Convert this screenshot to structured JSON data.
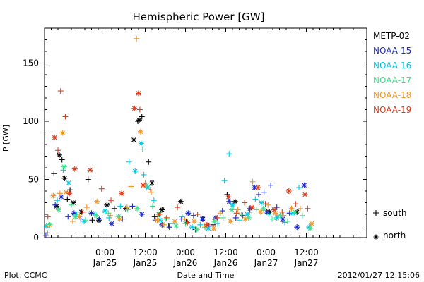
{
  "chart_data": {
    "type": "scatter",
    "title": "Hemispheric Power [GW]",
    "xlabel": "Date and Time",
    "ylabel": "P [GW]",
    "ylim": [
      0,
      180
    ],
    "xlim": [
      -9,
      39
    ],
    "yticks": [
      0,
      50,
      100,
      150
    ],
    "xticks": [
      {
        "x": 0,
        "time": "0:00",
        "date": "Jan25"
      },
      {
        "x": 6,
        "time": "12:00",
        "date": "Jan25"
      },
      {
        "x": 12,
        "time": "0:00",
        "date": "Jan26"
      },
      {
        "x": 18,
        "time": "12:00",
        "date": "Jan26"
      },
      {
        "x": 24,
        "time": "0:00",
        "date": "Jan27"
      },
      {
        "x": 30,
        "time": "12:00",
        "date": "Jan27"
      }
    ],
    "legend_position": "right",
    "marker_legend": [
      {
        "marker": "+",
        "label": "south"
      },
      {
        "marker": "*",
        "label": "north"
      }
    ],
    "footer_left": "Plot: CCMC",
    "footer_right": "2012/01/27 12:15:06",
    "series": [
      {
        "name": "METP-02",
        "color": "#000000",
        "points": [
          [
            -8.6,
            4,
            "+"
          ],
          [
            -7.6,
            55,
            "+"
          ],
          [
            -7.2,
            27,
            "*"
          ],
          [
            -6.8,
            71,
            "*"
          ],
          [
            -6.4,
            67,
            "+"
          ],
          [
            -6.0,
            51,
            "*"
          ],
          [
            -5.6,
            33,
            "+"
          ],
          [
            -5.2,
            41,
            "+"
          ],
          [
            -4.7,
            30,
            "*"
          ],
          [
            -3.5,
            22,
            "*"
          ],
          [
            -2.5,
            50,
            "+"
          ],
          [
            -1.9,
            15,
            "+"
          ],
          [
            -0.9,
            15,
            "*"
          ],
          [
            0.3,
            28,
            "*"
          ],
          [
            1.4,
            25,
            "+"
          ],
          [
            3.1,
            25,
            "*"
          ],
          [
            4.3,
            84,
            "*"
          ],
          [
            4.9,
            100,
            "+"
          ],
          [
            5.1,
            101,
            "*"
          ],
          [
            5.5,
            104,
            "+"
          ],
          [
            6.5,
            65,
            "+"
          ],
          [
            7.0,
            47,
            "*"
          ],
          [
            7.4,
            18,
            "+"
          ],
          [
            8.5,
            24,
            "*"
          ],
          [
            9.5,
            10,
            "+"
          ],
          [
            11.3,
            31,
            "*"
          ],
          [
            12.1,
            14,
            "+"
          ],
          [
            13.5,
            7,
            "+"
          ],
          [
            14.6,
            16,
            "*"
          ],
          [
            16.1,
            11,
            "+"
          ],
          [
            18.2,
            37,
            "+"
          ],
          [
            19.4,
            31,
            "*"
          ],
          [
            21.5,
            22,
            "+"
          ],
          [
            24.5,
            22,
            "*"
          ],
          [
            26.5,
            14,
            "+"
          ],
          [
            28.6,
            22,
            "*"
          ]
        ]
      },
      {
        "name": "NOAA-15",
        "color": "#1c2bc4",
        "points": [
          [
            -8.8,
            2,
            "+"
          ],
          [
            -7.4,
            28,
            "+"
          ],
          [
            -6.5,
            35,
            "*"
          ],
          [
            -5.5,
            18,
            "+"
          ],
          [
            -4.6,
            21,
            "*"
          ],
          [
            -3.6,
            16,
            "+"
          ],
          [
            -2.0,
            21,
            "*"
          ],
          [
            -0.8,
            16,
            "+"
          ],
          [
            1.0,
            12,
            "*"
          ],
          [
            2.6,
            16,
            "+"
          ],
          [
            4.1,
            27,
            "+"
          ],
          [
            5.5,
            20,
            "*"
          ],
          [
            7.5,
            15,
            "+"
          ],
          [
            8.5,
            11,
            "*"
          ],
          [
            9.6,
            9,
            "+"
          ],
          [
            11.4,
            16,
            "+"
          ],
          [
            12.4,
            21,
            "*"
          ],
          [
            13.2,
            19,
            "+"
          ],
          [
            14.5,
            16,
            "*"
          ],
          [
            15.5,
            10,
            "+"
          ],
          [
            16.5,
            17,
            "*"
          ],
          [
            17.5,
            23,
            "+"
          ],
          [
            18.5,
            31,
            "*"
          ],
          [
            19.5,
            17,
            "+"
          ],
          [
            20.5,
            19,
            "+"
          ],
          [
            21.6,
            25,
            "*"
          ],
          [
            22.3,
            43,
            "*"
          ],
          [
            22.9,
            37,
            "+"
          ],
          [
            23.7,
            39,
            "+"
          ],
          [
            24.1,
            22,
            "*"
          ],
          [
            24.7,
            45,
            "+"
          ],
          [
            25.6,
            26,
            "+"
          ],
          [
            26.5,
            16,
            "*"
          ],
          [
            27.5,
            21,
            "+"
          ],
          [
            28.6,
            9,
            "*"
          ],
          [
            29.7,
            45,
            "*"
          ]
        ]
      },
      {
        "name": "NOAA-16",
        "color": "#00c8e0",
        "points": [
          [
            -8.7,
            10,
            "*"
          ],
          [
            -7.1,
            32,
            "+"
          ],
          [
            -6.2,
            58,
            "+"
          ],
          [
            -5.4,
            47,
            "*"
          ],
          [
            -4.2,
            20,
            "+"
          ],
          [
            -3.1,
            14,
            "*"
          ],
          [
            -1.5,
            20,
            "+"
          ],
          [
            0.0,
            23,
            "*"
          ],
          [
            0.6,
            17,
            "+"
          ],
          [
            2.3,
            27,
            "+"
          ],
          [
            3.6,
            65,
            "+"
          ],
          [
            4.5,
            57,
            "*"
          ],
          [
            5.4,
            81,
            "*"
          ],
          [
            5.8,
            54,
            "+"
          ],
          [
            6.4,
            43,
            "*"
          ],
          [
            7.3,
            32,
            "+"
          ],
          [
            8.2,
            15,
            "*"
          ],
          [
            10.0,
            12,
            "+"
          ],
          [
            11.5,
            18,
            "+"
          ],
          [
            13.0,
            9,
            "*"
          ],
          [
            14.2,
            11,
            "+"
          ],
          [
            15.4,
            8,
            "*"
          ],
          [
            16.8,
            12,
            "+"
          ],
          [
            17.8,
            49,
            "+"
          ],
          [
            18.5,
            72,
            "+"
          ],
          [
            19.0,
            28,
            "*"
          ],
          [
            20.1,
            15,
            "+"
          ],
          [
            21.2,
            20,
            "*"
          ],
          [
            22.4,
            33,
            "+"
          ],
          [
            23.3,
            30,
            "*"
          ],
          [
            24.4,
            20,
            "+"
          ],
          [
            25.6,
            17,
            "*"
          ],
          [
            26.8,
            13,
            "+"
          ],
          [
            28.0,
            21,
            "*"
          ],
          [
            28.9,
            43,
            "+"
          ],
          [
            30.4,
            9,
            "*"
          ]
        ]
      },
      {
        "name": "NOAA-17",
        "color": "#3de08a",
        "points": [
          [
            -8.2,
            11,
            "*"
          ],
          [
            -6.9,
            24,
            "*"
          ],
          [
            -6.1,
            61,
            "*"
          ],
          [
            -5.0,
            28,
            "+"
          ],
          [
            -4.4,
            18,
            "*"
          ],
          [
            -2.9,
            15,
            "+"
          ],
          [
            -1.3,
            19,
            "*"
          ],
          [
            0.5,
            21,
            "+"
          ],
          [
            2.0,
            18,
            "*"
          ],
          [
            3.4,
            24,
            "+"
          ],
          [
            4.8,
            25,
            "*"
          ],
          [
            5.6,
            76,
            "+"
          ],
          [
            6.2,
            45,
            "*"
          ],
          [
            7.1,
            27,
            "+"
          ],
          [
            8.0,
            20,
            "*"
          ],
          [
            9.1,
            16,
            "+"
          ],
          [
            10.6,
            10,
            "*"
          ],
          [
            12.0,
            12,
            "+"
          ],
          [
            13.7,
            7,
            "*"
          ],
          [
            14.9,
            9,
            "+"
          ],
          [
            16.3,
            14,
            "*"
          ],
          [
            17.6,
            17,
            "+"
          ],
          [
            18.9,
            24,
            "*"
          ],
          [
            20.3,
            20,
            "+"
          ],
          [
            21.4,
            17,
            "*"
          ],
          [
            22.6,
            24,
            "+"
          ],
          [
            23.6,
            25,
            "*"
          ],
          [
            24.9,
            16,
            "+"
          ],
          [
            26.1,
            19,
            "*"
          ],
          [
            27.2,
            14,
            "+"
          ],
          [
            28.3,
            22,
            "*"
          ],
          [
            29.4,
            19,
            "+"
          ],
          [
            30.6,
            8,
            "*"
          ]
        ]
      },
      {
        "name": "NOAA-18",
        "color": "#f0962a",
        "points": [
          [
            -8.3,
            10,
            "+"
          ],
          [
            -7.7,
            36,
            "*"
          ],
          [
            -6.7,
            38,
            "+"
          ],
          [
            -6.3,
            90,
            "*"
          ],
          [
            -5.8,
            39,
            "*"
          ],
          [
            -4.8,
            14,
            "+"
          ],
          [
            -3.8,
            18,
            "*"
          ],
          [
            -2.7,
            26,
            "+"
          ],
          [
            -1.2,
            31,
            "*"
          ],
          [
            0.8,
            19,
            "+"
          ],
          [
            2.2,
            16,
            "*"
          ],
          [
            3.3,
            26,
            "+"
          ],
          [
            3.9,
            44,
            "+"
          ],
          [
            4.7,
            171,
            "+"
          ],
          [
            5.3,
            91,
            "*"
          ],
          [
            6.0,
            47,
            "+"
          ],
          [
            6.9,
            39,
            "+"
          ],
          [
            7.8,
            15,
            "*"
          ],
          [
            8.8,
            11,
            "+"
          ],
          [
            10.4,
            14,
            "*"
          ],
          [
            11.9,
            16,
            "+"
          ],
          [
            13.3,
            14,
            "*"
          ],
          [
            14.8,
            10,
            "+"
          ],
          [
            16.2,
            8,
            "*"
          ],
          [
            17.2,
            21,
            "+"
          ],
          [
            18.7,
            14,
            "*"
          ],
          [
            19.8,
            24,
            "+"
          ],
          [
            20.9,
            16,
            "*"
          ],
          [
            22.0,
            48,
            "+"
          ],
          [
            23.2,
            22,
            "*"
          ],
          [
            24.3,
            28,
            "+"
          ],
          [
            25.4,
            21,
            "*"
          ],
          [
            26.6,
            19,
            "+"
          ],
          [
            27.8,
            25,
            "*"
          ],
          [
            29.1,
            25,
            "+"
          ],
          [
            30.8,
            12,
            "*"
          ]
        ]
      },
      {
        "name": "NOAA-19",
        "color": "#dc3a18",
        "points": [
          [
            -8.5,
            18,
            "+"
          ],
          [
            -7.5,
            86,
            "*"
          ],
          [
            -7.0,
            75,
            "+"
          ],
          [
            -6.6,
            126,
            "+"
          ],
          [
            -5.9,
            104,
            "+"
          ],
          [
            -5.3,
            38,
            "*"
          ],
          [
            -4.5,
            59,
            "*"
          ],
          [
            -3.3,
            22,
            "+"
          ],
          [
            -2.2,
            58,
            "*"
          ],
          [
            -0.5,
            42,
            "+"
          ],
          [
            0.9,
            32,
            "+"
          ],
          [
            2.5,
            38,
            "*"
          ],
          [
            4.4,
            111,
            "*"
          ],
          [
            5.0,
            124,
            "*"
          ],
          [
            5.2,
            110,
            "+"
          ],
          [
            5.7,
            45,
            "*"
          ],
          [
            6.8,
            41,
            "+"
          ],
          [
            8.1,
            20,
            "*"
          ],
          [
            9.2,
            17,
            "+"
          ],
          [
            10.8,
            26,
            "+"
          ],
          [
            12.3,
            13,
            "*"
          ],
          [
            13.8,
            20,
            "+"
          ],
          [
            15.2,
            11,
            "*"
          ],
          [
            16.7,
            17,
            "+"
          ],
          [
            18.4,
            35,
            "*"
          ],
          [
            19.6,
            21,
            "+"
          ],
          [
            20.8,
            30,
            "+"
          ],
          [
            21.9,
            26,
            "*"
          ],
          [
            22.8,
            43,
            "*"
          ],
          [
            23.9,
            29,
            "+"
          ],
          [
            25.2,
            24,
            "*"
          ],
          [
            26.4,
            22,
            "+"
          ],
          [
            27.4,
            40,
            "*"
          ],
          [
            28.4,
            29,
            "+"
          ],
          [
            29.8,
            37,
            "*"
          ],
          [
            30.2,
            25,
            "+"
          ]
        ]
      }
    ]
  }
}
